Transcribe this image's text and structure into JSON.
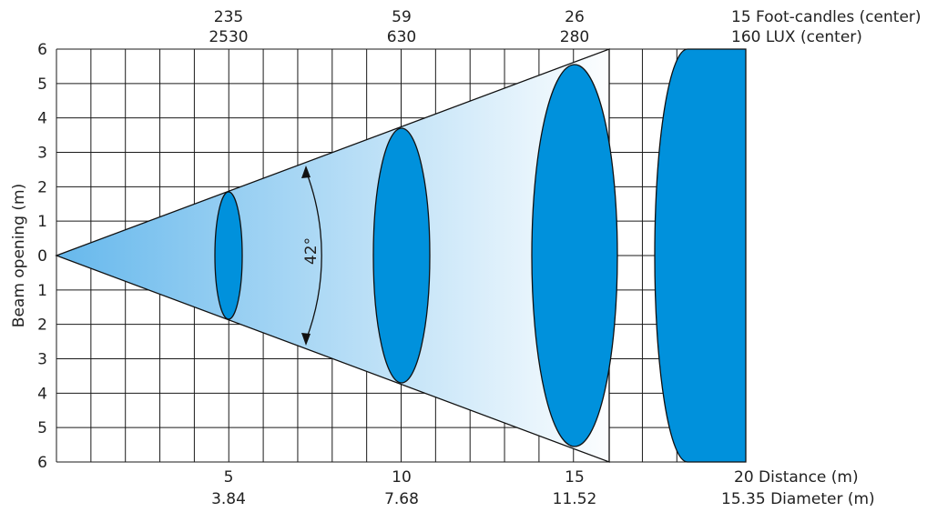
{
  "ylabel": "Beam opening (m)",
  "y_ticks": [
    "6",
    "5",
    "4",
    "3",
    "2",
    "1",
    "0",
    "1",
    "2",
    "3",
    "4",
    "5",
    "6"
  ],
  "beam_angle": "42°",
  "distance_label": "Distance (m)",
  "diameter_label": "Diameter (m)",
  "top_row_units": {
    "footcandles": "Foot-candles (center)",
    "lux": "LUX (center)"
  },
  "stations": [
    {
      "distance": "5",
      "diameter": "3.84",
      "footcandles": "235",
      "lux": "2530"
    },
    {
      "distance": "10",
      "diameter": "7.68",
      "footcandles": "59",
      "lux": "630"
    },
    {
      "distance": "15",
      "diameter": "11.52",
      "footcandles": "26",
      "lux": "280"
    },
    {
      "distance": "20",
      "diameter": "15.35",
      "footcandles": "15",
      "lux": "160"
    }
  ],
  "colors": {
    "spot_fill": "#0091dc",
    "cone_near": "#66b8ec",
    "cone_far": "#ffffff",
    "grid": "#1a1a1a"
  },
  "chart_data": {
    "type": "diagram",
    "beam_angle_deg": 42,
    "x": [
      5,
      10,
      15,
      20
    ],
    "diameter_m": [
      3.84,
      7.68,
      11.52,
      15.35
    ],
    "footcandles_center": [
      235,
      59,
      26,
      15
    ],
    "lux_center": [
      2530,
      630,
      280,
      160
    ],
    "xlim": [
      0,
      20
    ],
    "ylim": [
      -6,
      6
    ]
  }
}
